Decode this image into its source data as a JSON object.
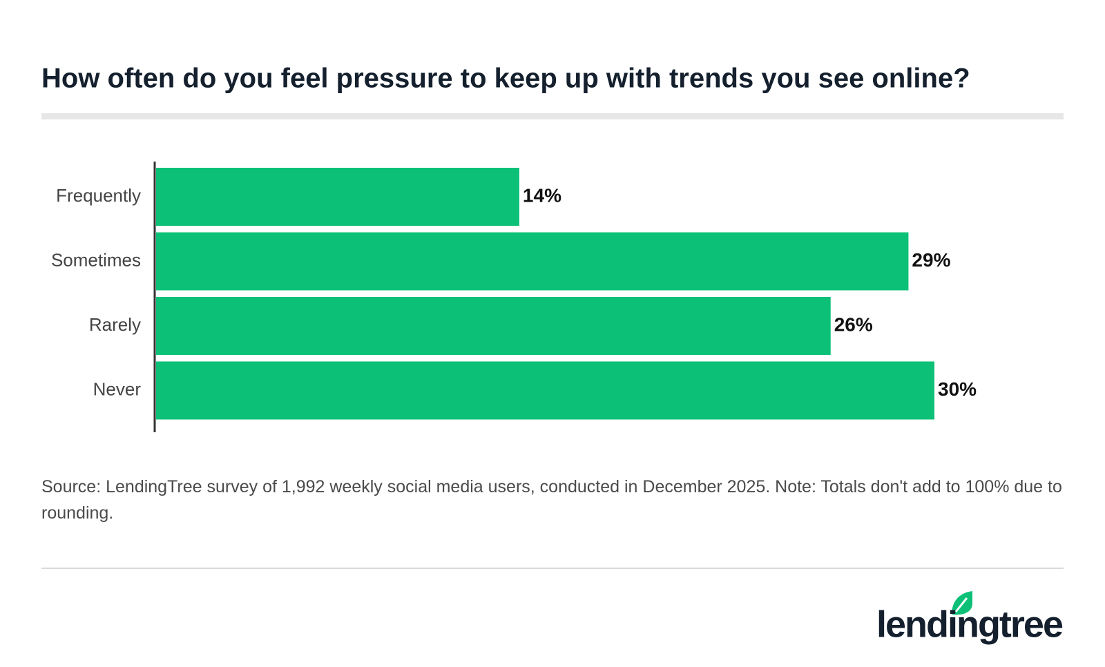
{
  "chart_data": {
    "type": "barh",
    "title": "How often do you feel pressure to keep up with trends you see online?",
    "categories": [
      "Frequently",
      "Sometimes",
      "Rarely",
      "Never"
    ],
    "values": [
      14,
      29,
      26,
      30
    ],
    "value_labels": [
      "14%",
      "29%",
      "26%",
      "30%"
    ],
    "color": "#0cc177",
    "source": "Source: LendingTree survey of 1,992 weekly social media users, conducted in December 2025. Note: Totals don't add to 100% due to rounding.",
    "logo": "lendingtree"
  }
}
